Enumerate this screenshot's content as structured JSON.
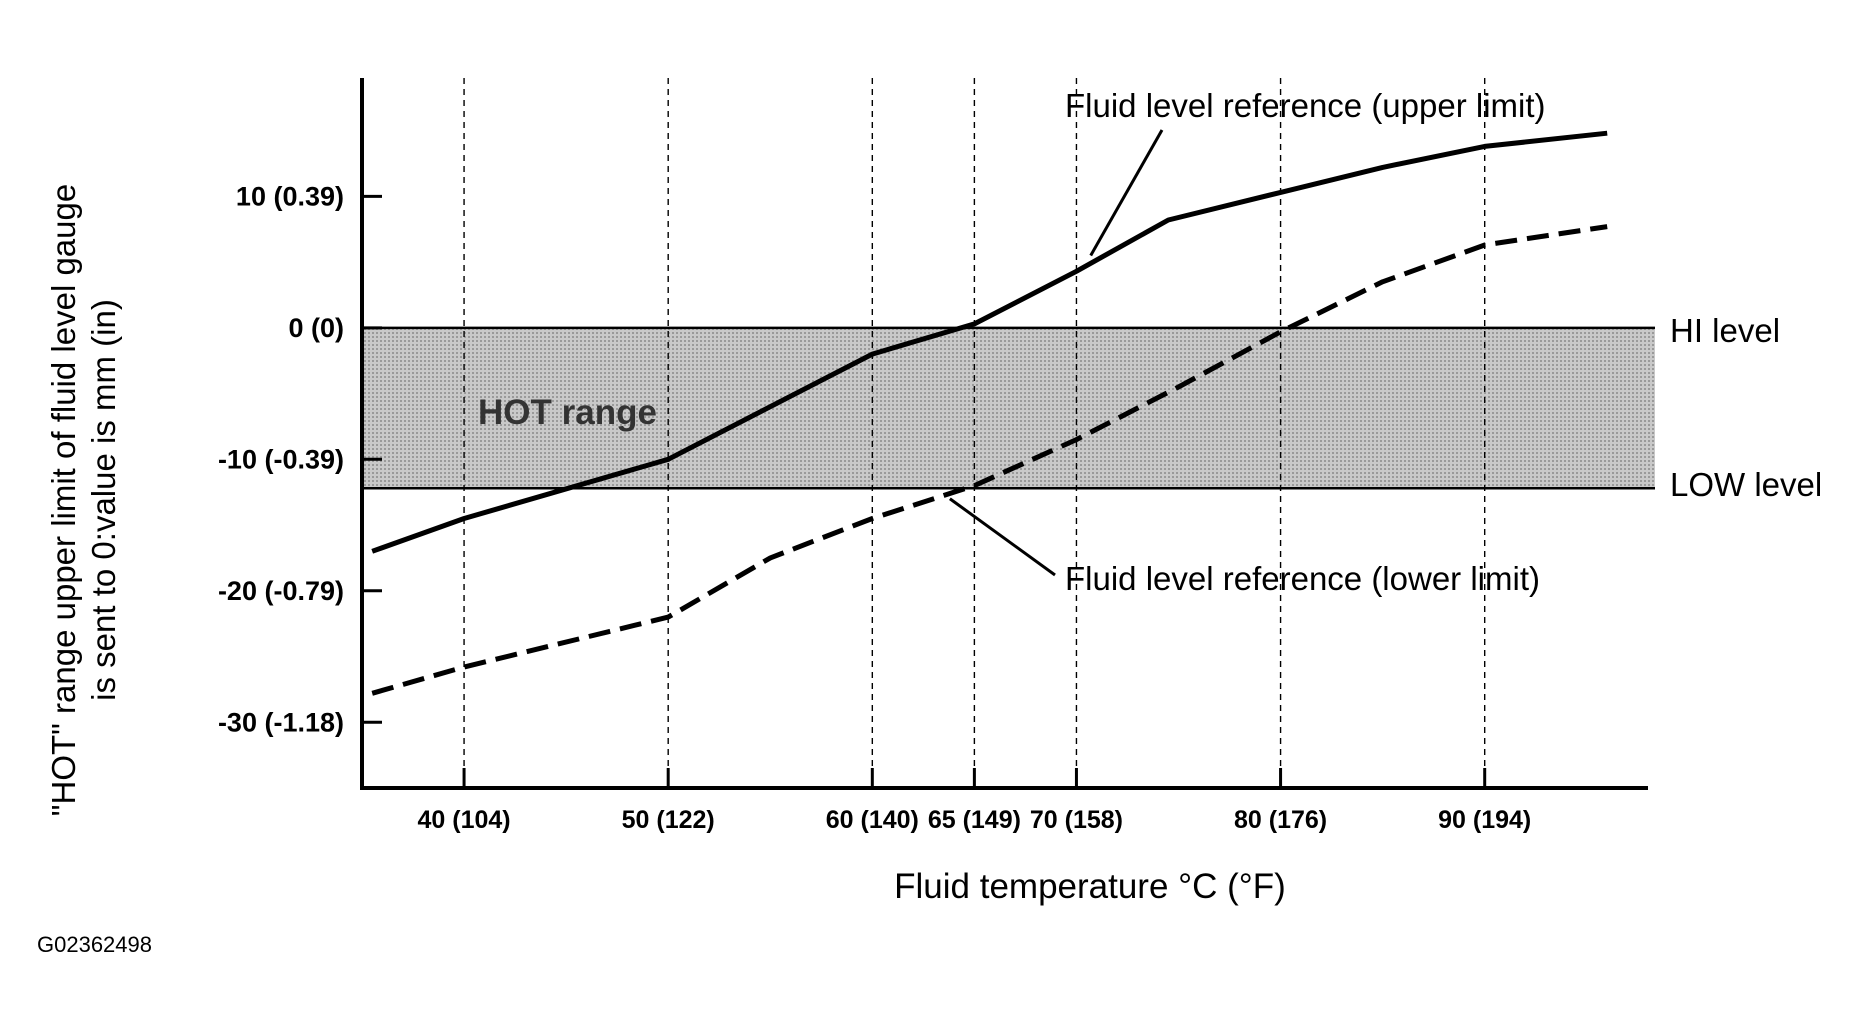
{
  "figure_id": "G02362498",
  "chart_data": {
    "type": "line",
    "title": "",
    "xlabel": "Fluid temperature °C (°F)",
    "ylabel_lines": [
      "\"HOT\" range upper limit of fluid level gauge",
      "is sent to 0:value is mm (in)"
    ],
    "xlim": [
      35,
      98
    ],
    "ylim": [
      -35,
      19
    ],
    "grid": "dashed vertical lines at x ticks",
    "x_ticks": [
      {
        "value": 40,
        "label": "40 (104)"
      },
      {
        "value": 50,
        "label": "50 (122)"
      },
      {
        "value": 60,
        "label": "60 (140)"
      },
      {
        "value": 65,
        "label": "65 (149)"
      },
      {
        "value": 70,
        "label": "70 (158)"
      },
      {
        "value": 80,
        "label": "80 (176)"
      },
      {
        "value": 90,
        "label": "90 (194)"
      }
    ],
    "y_ticks": [
      {
        "value": 10,
        "label": "10 (0.39)"
      },
      {
        "value": 0,
        "label": "0 (0)"
      },
      {
        "value": -10,
        "label": "-10 (-0.39)"
      },
      {
        "value": -20,
        "label": "-20 (-0.79)"
      },
      {
        "value": -30,
        "label": "-30 (-1.18)"
      }
    ],
    "band": {
      "label": "HOT range",
      "y_from": -12.2,
      "y_to": 0,
      "fill": "#bdbdbd"
    },
    "levels": [
      {
        "label": "HI level",
        "y": 0
      },
      {
        "label": "LOW level",
        "y": -12.2
      }
    ],
    "series": [
      {
        "name": "Fluid level reference (upper limit)",
        "style": "solid",
        "x": [
          35.5,
          40,
          50,
          60,
          65,
          70,
          74.5,
          80,
          85,
          90,
          96
        ],
        "y": [
          -17,
          -14.5,
          -10,
          -2,
          0.3,
          4.3,
          8.2,
          10.3,
          12.2,
          13.8,
          14.8
        ]
      },
      {
        "name": "Fluid level reference (lower limit)",
        "style": "dashed",
        "x": [
          35.5,
          40,
          50,
          55,
          60,
          65,
          70,
          75,
          80,
          85,
          90,
          96
        ],
        "y": [
          -27.8,
          -25.8,
          -22,
          -17.5,
          -14.5,
          -12,
          -8.5,
          -4.5,
          -0.3,
          3.5,
          6.3,
          7.7
        ]
      }
    ],
    "annotations": [
      {
        "text": "Fluid level reference (upper limit)",
        "points_to": {
          "x": 70.7,
          "y": 5.5
        }
      },
      {
        "text": "Fluid level reference (lower limit)",
        "points_to": {
          "x": 63.8,
          "y": -13
        }
      }
    ],
    "colors": {
      "line": "#000000",
      "band": "#bdbdbd",
      "grid": "#000000"
    }
  }
}
